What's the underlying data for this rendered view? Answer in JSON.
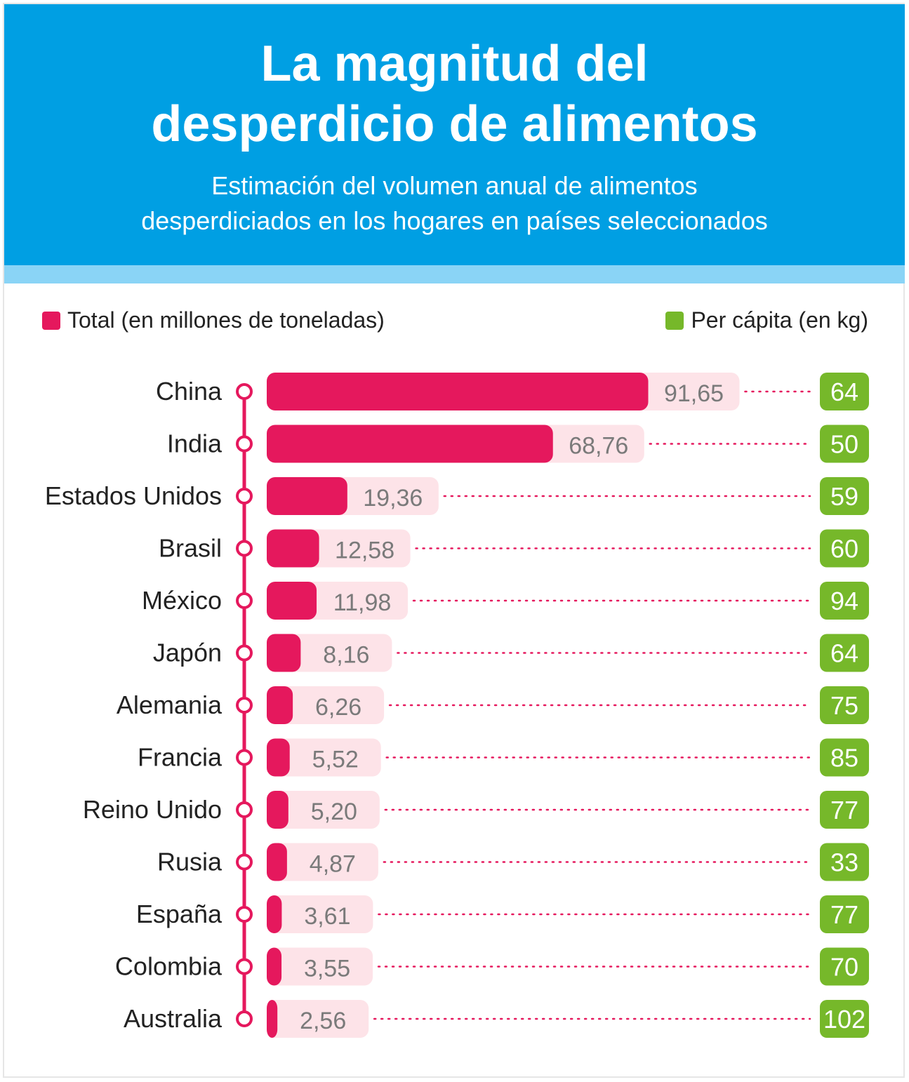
{
  "header": {
    "title_line1": "La magnitud del",
    "title_line2": "desperdicio de alimentos",
    "subtitle_line1": "Estimación del volumen anual de alimentos",
    "subtitle_line2": "desperdiciados en los hogares en países seleccionados"
  },
  "legend": {
    "total_label": "Total (en millones de toneladas)",
    "per_capita_label": "Per cápita (en kg)"
  },
  "colors": {
    "header_bg": "#009fe3",
    "header_strip": "#8ad4f6",
    "total_bar": "#e5185d",
    "total_track": "#fde3e8",
    "per_capita": "#76b82a",
    "value_text": "#7a7a7a"
  },
  "chart_data": {
    "type": "bar",
    "orientation": "horizontal",
    "categories": [
      "China",
      "India",
      "Estados Unidos",
      "Brasil",
      "México",
      "Japón",
      "Alemania",
      "Francia",
      "Reino Unido",
      "Rusia",
      "España",
      "Colombia",
      "Australia"
    ],
    "series": [
      {
        "name": "Total (en millones de toneladas)",
        "values": [
          91.65,
          68.76,
          19.36,
          12.58,
          11.98,
          8.16,
          6.26,
          5.52,
          5.2,
          4.87,
          3.61,
          3.55,
          2.56
        ],
        "labels": [
          "91,65",
          "68,76",
          "19,36",
          "12,58",
          "11,98",
          "8,16",
          "6,26",
          "5,52",
          "5,20",
          "4,87",
          "3,61",
          "3,55",
          "2,56"
        ]
      },
      {
        "name": "Per cápita (en kg)",
        "values": [
          64,
          50,
          59,
          60,
          94,
          64,
          75,
          85,
          77,
          33,
          77,
          70,
          102
        ],
        "labels": [
          "64",
          "50",
          "59",
          "60",
          "94",
          "64",
          "75",
          "85",
          "77",
          "33",
          "77",
          "70",
          "102"
        ]
      }
    ],
    "legend_position": "top",
    "grid": false
  }
}
